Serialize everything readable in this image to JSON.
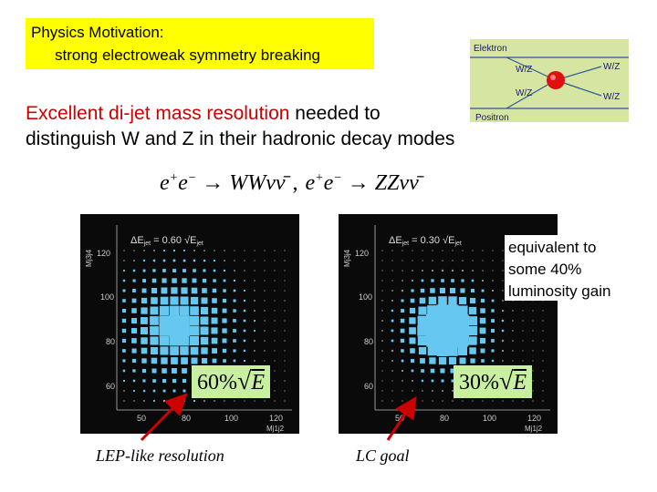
{
  "title": {
    "line1": "Physics Motivation:",
    "line2": "strong electroweak symmetry breaking"
  },
  "feynman": {
    "top_label": "Elektron",
    "bottom_label": "Positron",
    "left_upper": "W/Z",
    "left_lower": "W/Z",
    "right_upper": "W/Z",
    "right_lower": "W/Z",
    "vertex_color": "#e01010"
  },
  "statement": {
    "highlight": "Excellent di-jet mass resolution",
    "rest_line1": " needed to",
    "line2": "distinguish W and Z in their hadronic decay modes",
    "highlight_color": "#cc0000"
  },
  "formula": {
    "e": "e",
    "plus": "+",
    "minus": "−",
    "arrow": "→",
    "ww": "WWνν̄",
    "comma": ",",
    "zz": "ZZνν̄"
  },
  "plots": {
    "left": {
      "legend": "ΔE",
      "legend_sub": "jet",
      "legend_eq": " = 0.60 √E",
      "legend_sub2": "jet",
      "resolution_coef": "60%",
      "resolution_sym": "E",
      "y_axis_label": "Mj3j4",
      "x_axis_label": "Mj1j2",
      "y_ticks": [
        "120",
        "100",
        "80",
        "60"
      ],
      "x_ticks": [
        "50",
        "80",
        "100",
        "120"
      ]
    },
    "right": {
      "legend": "ΔE",
      "legend_sub": "jet",
      "legend_eq": " = 0.30 √E",
      "legend_sub2": "jet",
      "resolution_coef": "30%",
      "resolution_sym": "E",
      "y_axis_label": "Mj3j4",
      "x_axis_label": "Mj1j2",
      "y_ticks": [
        "120",
        "100",
        "80",
        "60"
      ],
      "x_ticks": [
        "50",
        "80",
        "100",
        "120"
      ]
    },
    "marker_color": "#66c8f0",
    "arrow_color": "#cc0000"
  },
  "callout": {
    "line1": "equivalent to",
    "line2": "some 40%",
    "line3": "luminosity gain"
  },
  "captions": {
    "left": "LEP-like resolution",
    "right": "LC goal"
  }
}
